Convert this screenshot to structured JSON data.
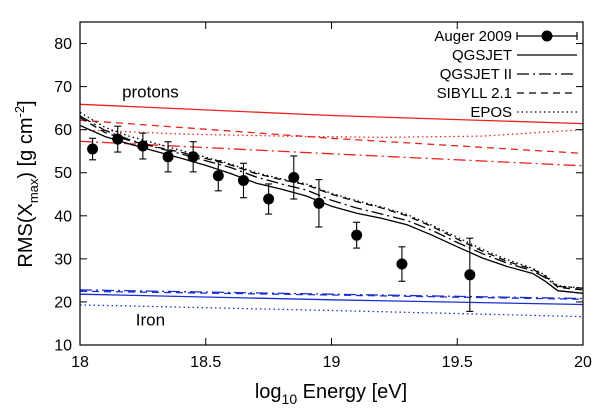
{
  "chart_data": {
    "type": "line",
    "xlabel": {
      "prefix": "log",
      "sub": "10",
      "suffix": " Energy [eV]"
    },
    "ylabel": {
      "prefix": "RMS(X",
      "sub": "max",
      "middle": ") [g cm",
      "sup": "-2",
      "suffix": "]"
    },
    "xlim": [
      18,
      20
    ],
    "ylim": [
      10,
      85
    ],
    "xticks": [
      "18",
      "18.5",
      "19",
      "19.5",
      "20"
    ],
    "yticks": [
      "10",
      "20",
      "30",
      "40",
      "50",
      "60",
      "70",
      "80"
    ],
    "grid": false,
    "legend_position": "top-right",
    "annotations": [
      {
        "text": "protons",
        "x": 18.28,
        "y": 67.5
      },
      {
        "text": "Iron",
        "x": 18.28,
        "y": 14.5
      }
    ],
    "legend": [
      {
        "label": "Auger 2009",
        "style": "points"
      },
      {
        "label": "QGSJET",
        "style": "solid"
      },
      {
        "label": "QGSJET II",
        "style": "dashdot"
      },
      {
        "label": "SIBYLL 2.1",
        "style": "dashed"
      },
      {
        "label": "EPOS",
        "style": "dotted"
      }
    ],
    "colors": {
      "data": "#000000",
      "proton": "#e8231e",
      "iron": "#1a2fd1",
      "data_model": "#000000"
    },
    "data_points": {
      "name": "Auger 2009",
      "x": [
        18.05,
        18.15,
        18.25,
        18.35,
        18.45,
        18.55,
        18.65,
        18.75,
        18.85,
        18.95,
        19.1,
        19.28,
        19.55
      ],
      "y": [
        55.5,
        57.8,
        56.2,
        53.7,
        53.7,
        49.3,
        48.2,
        43.9,
        48.9,
        42.9,
        35.5,
        28.8,
        26.3
      ],
      "err": [
        2.5,
        3.0,
        3.0,
        3.5,
        3.5,
        3.5,
        4.0,
        3.5,
        5.0,
        5.5,
        3.0,
        4.0,
        8.5
      ]
    },
    "series": [
      {
        "name": "QGSJET",
        "group": "proton",
        "style": "solid",
        "x": [
          18,
          19,
          20
        ],
        "y": [
          65.9,
          63.3,
          61.4
        ]
      },
      {
        "name": "QGSJET II",
        "group": "proton",
        "style": "dashdot",
        "x": [
          18,
          19,
          20
        ],
        "y": [
          57.3,
          54.4,
          51.6
        ]
      },
      {
        "name": "SIBYLL 2.1",
        "group": "proton",
        "style": "dashed",
        "x": [
          18,
          19,
          20
        ],
        "y": [
          62.2,
          58.0,
          54.5
        ]
      },
      {
        "name": "EPOS",
        "group": "proton",
        "style": "dotted",
        "x": [
          18,
          18.4,
          18.8,
          19.2,
          19.6,
          20
        ],
        "y": [
          60.0,
          59.0,
          58.5,
          58.2,
          58.5,
          60.0
        ]
      },
      {
        "name": "QGSJET",
        "group": "iron",
        "style": "solid",
        "x": [
          18,
          19,
          20
        ],
        "y": [
          21.8,
          20.5,
          19.4
        ]
      },
      {
        "name": "QGSJET II",
        "group": "iron",
        "style": "dashdot",
        "x": [
          18,
          19,
          20
        ],
        "y": [
          22.8,
          21.8,
          20.8
        ]
      },
      {
        "name": "SIBYLL 2.1",
        "group": "iron",
        "style": "dashed",
        "x": [
          18,
          19,
          20
        ],
        "y": [
          22.5,
          21.6,
          20.6
        ]
      },
      {
        "name": "EPOS",
        "group": "iron",
        "style": "dotted",
        "x": [
          18,
          19,
          20
        ],
        "y": [
          19.3,
          18.0,
          16.6
        ]
      },
      {
        "name": "QGSJET",
        "group": "data",
        "style": "solid",
        "x": [
          18,
          18.1,
          18.2,
          18.3,
          18.4,
          18.5,
          18.6,
          18.7,
          18.8,
          18.9,
          19.0,
          19.1,
          19.2,
          19.3,
          19.4,
          19.5,
          19.6,
          19.7,
          19.8,
          19.85,
          19.9,
          20
        ],
        "y": [
          61.0,
          58.4,
          56.6,
          55.0,
          53.4,
          51.7,
          49.8,
          47.6,
          46.2,
          44.6,
          42.2,
          40.6,
          39.4,
          37.9,
          35.5,
          32.8,
          30.2,
          28.2,
          26.6,
          24.8,
          22.6,
          22.0
        ]
      },
      {
        "name": "QGSJET II",
        "group": "data",
        "style": "dashdot",
        "x": [
          18,
          18.1,
          18.2,
          18.3,
          18.4,
          18.5,
          18.6,
          18.7,
          18.8,
          18.9,
          19.0,
          19.1,
          19.2,
          19.3,
          19.4,
          19.5,
          19.6,
          19.7,
          19.8,
          19.85,
          19.9,
          20
        ],
        "y": [
          63.2,
          59.8,
          57.6,
          55.9,
          54.4,
          52.8,
          51.2,
          49.0,
          47.4,
          46.0,
          43.6,
          41.8,
          40.4,
          38.9,
          36.6,
          33.8,
          31.2,
          29.0,
          27.2,
          25.6,
          23.6,
          23.2
        ]
      },
      {
        "name": "SIBYLL 2.1",
        "group": "data",
        "style": "dashed",
        "x": [
          18,
          18.1,
          18.2,
          18.3,
          18.4,
          18.5,
          18.6,
          18.7,
          18.8,
          18.9,
          19.0,
          19.1,
          19.2,
          19.3,
          19.4,
          19.5,
          19.6,
          19.7,
          19.8,
          19.85,
          19.9,
          20
        ],
        "y": [
          62.8,
          59.3,
          57.4,
          56.0,
          54.8,
          53.3,
          51.8,
          49.8,
          48.4,
          47.2,
          45.0,
          43.3,
          41.8,
          40.0,
          37.5,
          34.6,
          31.8,
          29.4,
          27.6,
          26.0,
          23.4,
          22.8
        ]
      },
      {
        "name": "EPOS",
        "group": "data",
        "style": "dotted",
        "x": [
          18,
          18.1,
          18.2,
          18.3,
          18.4,
          18.5,
          18.6,
          18.7,
          18.8,
          18.9,
          19.0,
          19.1,
          19.2,
          19.3,
          19.4,
          19.5,
          19.6,
          19.7,
          19.8,
          19.85,
          19.9,
          20
        ],
        "y": [
          64.0,
          60.5,
          58.4,
          56.8,
          55.2,
          53.6,
          52.0,
          50.0,
          48.6,
          47.4,
          45.2,
          43.5,
          42.0,
          40.3,
          37.8,
          35.0,
          32.2,
          29.8,
          27.8,
          26.2,
          23.8,
          23.2
        ]
      }
    ]
  }
}
